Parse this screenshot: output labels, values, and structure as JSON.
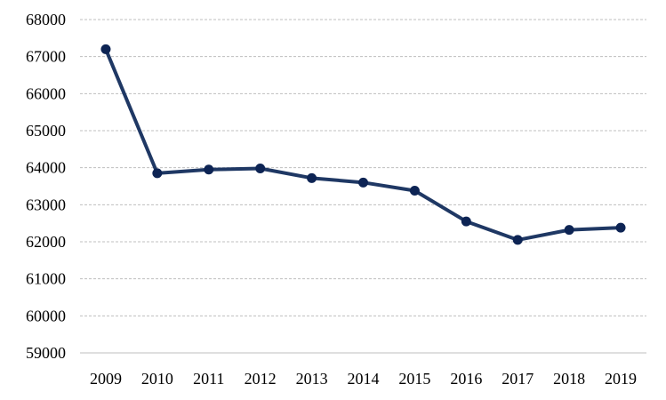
{
  "chart_data": {
    "type": "line",
    "title": "",
    "xlabel": "",
    "ylabel": "",
    "x": [
      "2009",
      "2010",
      "2011",
      "2012",
      "2013",
      "2014",
      "2015",
      "2016",
      "2017",
      "2018",
      "2019"
    ],
    "series": [
      {
        "values": [
          67200,
          63850,
          63950,
          63980,
          63720,
          63600,
          63380,
          62550,
          62050,
          62320,
          62380
        ]
      }
    ],
    "y_ticks": [
      "59000",
      "60000",
      "61000",
      "62000",
      "63000",
      "64000",
      "65000",
      "66000",
      "67000",
      "68000"
    ],
    "ylim": [
      59000,
      68000
    ],
    "grid": true,
    "legend": "none",
    "colors": {
      "line": "#1f3864",
      "marker": "#0d2454",
      "grid": "#bfbfbf"
    }
  }
}
